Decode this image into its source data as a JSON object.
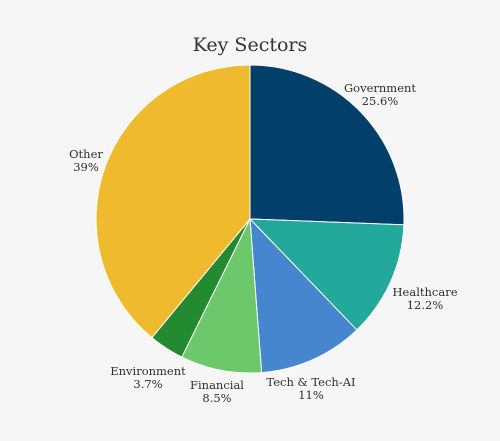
{
  "chart_data": {
    "type": "pie",
    "title": "Key Sectors",
    "slices": [
      {
        "label": "Government",
        "value": 25.6,
        "value_label": "25.6%",
        "color": "#023f6b"
      },
      {
        "label": "Healthcare",
        "value": 12.2,
        "value_label": "12.2%",
        "color": "#22a99c"
      },
      {
        "label": "Tech & Tech-AI",
        "value": 11,
        "value_label": "11%",
        "color": "#4586cf"
      },
      {
        "label": "Financial",
        "value": 8.5,
        "value_label": "8.5%",
        "color": "#6bc86b"
      },
      {
        "label": "Environment",
        "value": 3.7,
        "value_label": "3.7%",
        "color": "#248a32"
      },
      {
        "label": "Other",
        "value": 39,
        "value_label": "39%",
        "color": "#efba2d"
      }
    ]
  }
}
